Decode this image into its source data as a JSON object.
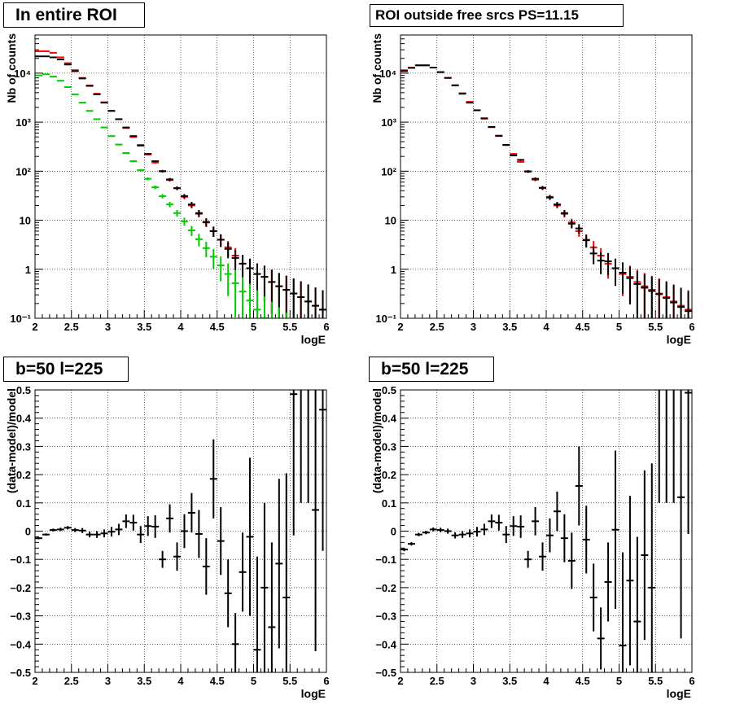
{
  "chart_data": [
    {
      "type": "scatter",
      "title": "In entire ROI",
      "xlabel": "logE",
      "ylabel": "Nb of counts",
      "xlim": [
        2,
        6
      ],
      "ylim": [
        0.1,
        60000
      ],
      "y_scale": "log",
      "grid": true,
      "x_tick_labels": [
        "2",
        "2.5",
        "3",
        "3.5",
        "4",
        "4.5",
        "5",
        "5.5",
        "6"
      ],
      "y_tick_labels": [
        "10⁻¹",
        "1",
        "10",
        "10²",
        "10³",
        "10⁴"
      ],
      "series": [
        {
          "color": "#ff0000",
          "bin_width": 0.1,
          "x": [
            2.05,
            2.15,
            2.25,
            2.35,
            2.45,
            2.55,
            2.65,
            2.75,
            2.85,
            2.95,
            3.05,
            3.15,
            3.25,
            3.35,
            3.45,
            3.55,
            3.65,
            3.75,
            3.85,
            3.95,
            4.05,
            4.15,
            4.25,
            4.35,
            4.45,
            4.55,
            4.65,
            4.75,
            4.85,
            4.95,
            5.05,
            5.15,
            5.25,
            5.35,
            5.45,
            5.55,
            5.65,
            5.75,
            5.85,
            5.95
          ],
          "y": [
            28000,
            28000,
            26000,
            21000,
            16000,
            11500,
            8000,
            5600,
            3800,
            2550,
            1700,
            1150,
            760,
            500,
            330,
            220,
            150,
            100,
            66,
            45,
            30,
            20,
            13.5,
            9,
            6,
            4,
            2.8,
            1.9,
            1.3,
            1.05,
            0.8,
            0.7,
            0.55,
            0.45,
            0.38,
            0.32,
            0.27,
            0.22,
            0.18,
            0.15
          ]
        },
        {
          "color": "#000000",
          "bin_width": 0.1,
          "x": [
            2.05,
            2.15,
            2.25,
            2.35,
            2.45,
            2.55,
            2.65,
            2.75,
            2.85,
            2.95,
            3.05,
            3.15,
            3.25,
            3.35,
            3.45,
            3.55,
            3.65,
            3.75,
            3.85,
            3.95,
            4.05,
            4.15,
            4.25,
            4.35,
            4.45,
            4.55,
            4.65,
            4.75,
            4.85,
            4.95,
            5.05,
            5.15,
            5.25,
            5.35,
            5.45,
            5.55,
            5.65,
            5.75,
            5.85,
            5.95
          ],
          "y": [
            22000,
            22000,
            21000,
            19000,
            15000,
            11000,
            7800,
            5500,
            3700,
            2500,
            1700,
            1150,
            780,
            520,
            340,
            225,
            160,
            100,
            68,
            45,
            31,
            21,
            14,
            9.2,
            6,
            4,
            2.6,
            1.7,
            1.3,
            1.05,
            0.8,
            0.7,
            0.55,
            0.45,
            0.38,
            0.32,
            0.27,
            0.22,
            0.18,
            0.15
          ]
        },
        {
          "color": "#00cc00",
          "bin_width": 0.1,
          "x": [
            2.05,
            2.15,
            2.25,
            2.35,
            2.45,
            2.55,
            2.65,
            2.75,
            2.85,
            2.95,
            3.05,
            3.15,
            3.25,
            3.35,
            3.45,
            3.55,
            3.65,
            3.75,
            3.85,
            3.95,
            4.05,
            4.15,
            4.25,
            4.35,
            4.45,
            4.55,
            4.65,
            4.75,
            4.85,
            4.95,
            5.05,
            5.15,
            5.25,
            5.35,
            5.45,
            5.55,
            5.65,
            5.75,
            5.85,
            5.95
          ],
          "y": [
            9000,
            9500,
            8500,
            7000,
            5200,
            3700,
            2500,
            1700,
            1150,
            780,
            520,
            350,
            235,
            160,
            105,
            70,
            47,
            31,
            21,
            14,
            9.5,
            6.2,
            4.1,
            2.7,
            1.8,
            1.2,
            0.8,
            0.52,
            0.35,
            0.23,
            0.15,
            0.1,
            0.068,
            0.045,
            0.03,
            0.02,
            0.013,
            0.009,
            0.006,
            0.004
          ]
        }
      ]
    },
    {
      "type": "scatter",
      "title": "ROI outside free srcs PS=11.15",
      "xlabel": "logE",
      "ylabel": "Nb of counts",
      "xlim": [
        2,
        6
      ],
      "ylim": [
        0.1,
        60000
      ],
      "y_scale": "log",
      "grid": true,
      "x_tick_labels": [
        "2",
        "2.5",
        "3",
        "3.5",
        "4",
        "4.5",
        "5",
        "5.5",
        "6"
      ],
      "y_tick_labels": [
        "10⁻¹",
        "1",
        "10",
        "10²",
        "10³",
        "10⁴"
      ],
      "series": [
        {
          "color": "#ff0000",
          "bin_width": 0.1,
          "x": [
            2.05,
            2.15,
            2.25,
            2.35,
            2.45,
            2.55,
            2.65,
            2.75,
            2.85,
            2.95,
            3.05,
            3.15,
            3.25,
            3.35,
            3.45,
            3.55,
            3.65,
            3.75,
            3.85,
            3.95,
            4.05,
            4.15,
            4.25,
            4.35,
            4.45,
            4.55,
            4.65,
            4.75,
            4.85,
            4.95,
            5.05,
            5.15,
            5.25,
            5.35,
            5.45,
            5.55,
            5.65,
            5.75,
            5.85,
            5.95
          ],
          "y": [
            11500,
            13000,
            14500,
            14500,
            13000,
            10500,
            8000,
            5700,
            3900,
            2600,
            1750,
            1180,
            790,
            520,
            340,
            225,
            155,
            100,
            67,
            45,
            30,
            20,
            13.5,
            9,
            6,
            4,
            2.8,
            1.9,
            1.3,
            1.05,
            0.8,
            0.7,
            0.55,
            0.45,
            0.38,
            0.32,
            0.27,
            0.22,
            0.18,
            0.15
          ]
        },
        {
          "color": "#000000",
          "bin_width": 0.1,
          "x": [
            2.05,
            2.15,
            2.25,
            2.35,
            2.45,
            2.55,
            2.65,
            2.75,
            2.85,
            2.95,
            3.05,
            3.15,
            3.25,
            3.35,
            3.45,
            3.55,
            3.65,
            3.75,
            3.85,
            3.95,
            4.05,
            4.15,
            4.25,
            4.35,
            4.45,
            4.55,
            4.65,
            4.75,
            4.85,
            4.95,
            5.05,
            5.15,
            5.25,
            5.35,
            5.45,
            5.55,
            5.65,
            5.75,
            5.85,
            5.95
          ],
          "y": [
            11000,
            12800,
            14400,
            14400,
            13000,
            10500,
            8000,
            5600,
            3800,
            2500,
            1750,
            1200,
            800,
            530,
            345,
            210,
            170,
            98,
            70,
            46,
            29,
            21,
            14,
            8.5,
            6.8,
            3.9,
            2.1,
            1.5,
            1.45,
            1.05,
            0.85,
            0.66,
            0.5,
            0.42,
            0.36,
            0.31,
            0.26,
            0.21,
            0.17,
            0.14
          ]
        }
      ]
    },
    {
      "type": "scatter",
      "title": "b=50 l=225",
      "xlabel": "logE",
      "ylabel": "(data-model)/model",
      "xlim": [
        2,
        6
      ],
      "ylim": [
        -0.5,
        0.5
      ],
      "grid": true,
      "x_tick_labels": [
        "2",
        "2.5",
        "3",
        "3.5",
        "4",
        "4.5",
        "5",
        "5.5",
        "6"
      ],
      "y_tick_labels": [
        "−0.5",
        "−0.4",
        "−0.3",
        "−0.2",
        "−0.1",
        "0",
        "0.1",
        "0.2",
        "0.3",
        "0.4",
        "0.5"
      ],
      "series": [
        {
          "color": "#000000",
          "bin_width": 0.1,
          "x": [
            2.05,
            2.15,
            2.25,
            2.35,
            2.45,
            2.55,
            2.65,
            2.75,
            2.85,
            2.95,
            3.05,
            3.15,
            3.25,
            3.35,
            3.45,
            3.55,
            3.65,
            3.75,
            3.85,
            3.95,
            4.05,
            4.15,
            4.25,
            4.35,
            4.45,
            4.55,
            4.65,
            4.75,
            4.85,
            4.95,
            5.05,
            5.15,
            5.25,
            5.35,
            5.45,
            5.55,
            5.65,
            5.75,
            5.85,
            5.95
          ],
          "y": [
            -0.025,
            -0.012,
            0.004,
            0.006,
            0.012,
            0.004,
            0.002,
            -0.012,
            -0.012,
            -0.008,
            -0.002,
            0.006,
            0.035,
            0.03,
            -0.012,
            0.018,
            0.016,
            -0.1,
            0.045,
            -0.09,
            0,
            0.065,
            -0.01,
            -0.125,
            0.185,
            -0.035,
            -0.22,
            -0.4,
            -0.145,
            -0.02,
            -0.42,
            -0.2,
            -0.34,
            -0.115,
            -0.235,
            0.485,
            0.6,
            0.6,
            0.075,
            0.43
          ],
          "err": [
            0.004,
            0.004,
            0.005,
            0.006,
            0.006,
            0.007,
            0.009,
            0.01,
            0.012,
            0.014,
            0.017,
            0.02,
            0.024,
            0.028,
            0.03,
            0.035,
            0.04,
            0.03,
            0.05,
            0.05,
            0.06,
            0.07,
            0.085,
            0.1,
            0.14,
            0.12,
            0.12,
            0.11,
            0.14,
            0.28,
            0.33,
            0.3,
            0.3,
            0.3,
            0.44,
            0.5,
            0.5,
            0.5,
            0.5,
            0.5
          ]
        }
      ]
    },
    {
      "type": "scatter",
      "title": "b=50 l=225",
      "xlabel": "logE",
      "ylabel": "(data-model)/model",
      "xlim": [
        2,
        6
      ],
      "ylim": [
        -0.5,
        0.5
      ],
      "grid": true,
      "x_tick_labels": [
        "2",
        "2.5",
        "3",
        "3.5",
        "4",
        "4.5",
        "5",
        "5.5",
        "6"
      ],
      "y_tick_labels": [
        "−0.5",
        "−0.4",
        "−0.3",
        "−0.2",
        "−0.1",
        "0",
        "0.1",
        "0.2",
        "0.3",
        "0.4",
        "0.5"
      ],
      "series": [
        {
          "color": "#000000",
          "bin_width": 0.1,
          "x": [
            2.05,
            2.15,
            2.25,
            2.35,
            2.45,
            2.55,
            2.65,
            2.75,
            2.85,
            2.95,
            3.05,
            3.15,
            3.25,
            3.35,
            3.45,
            3.55,
            3.65,
            3.75,
            3.85,
            3.95,
            4.05,
            4.15,
            4.25,
            4.35,
            4.45,
            4.55,
            4.65,
            4.75,
            4.85,
            4.95,
            5.05,
            5.15,
            5.25,
            5.35,
            5.45,
            5.55,
            5.65,
            5.75,
            5.85,
            5.95
          ],
          "y": [
            -0.065,
            -0.045,
            -0.012,
            -0.005,
            0.006,
            0.004,
            0,
            -0.015,
            -0.012,
            -0.008,
            -0.002,
            0.006,
            0.035,
            0.03,
            -0.012,
            0.018,
            0.016,
            -0.1,
            0.035,
            -0.09,
            -0.015,
            0.07,
            -0.025,
            -0.105,
            0.16,
            -0.03,
            -0.235,
            -0.38,
            -0.18,
            0.005,
            -0.405,
            -0.175,
            -0.32,
            -0.085,
            -0.2,
            0.6,
            0.6,
            0.6,
            0.12,
            0.49
          ],
          "err": [
            0.006,
            0.006,
            0.006,
            0.006,
            0.007,
            0.008,
            0.009,
            0.011,
            0.012,
            0.014,
            0.017,
            0.02,
            0.024,
            0.028,
            0.03,
            0.035,
            0.04,
            0.03,
            0.05,
            0.05,
            0.06,
            0.07,
            0.085,
            0.1,
            0.14,
            0.12,
            0.12,
            0.11,
            0.14,
            0.28,
            0.33,
            0.3,
            0.3,
            0.3,
            0.44,
            0.5,
            0.5,
            0.5,
            0.5,
            0.5
          ]
        }
      ]
    }
  ]
}
